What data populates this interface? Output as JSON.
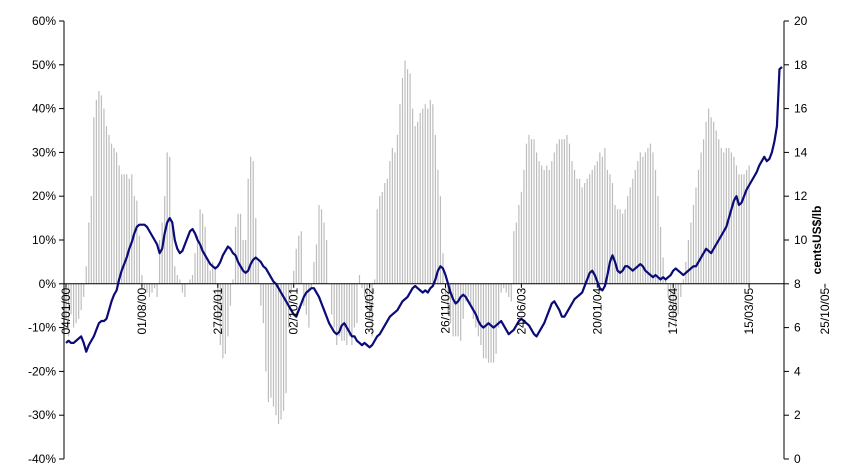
{
  "chart_data": {
    "type": "bar+line",
    "title": "",
    "y_left": {
      "ticks": [
        -40,
        -30,
        -20,
        -10,
        0,
        10,
        20,
        30,
        40,
        50,
        60
      ],
      "tick_labels": [
        "-40%",
        "-30%",
        "-20%",
        "-10%",
        "0%",
        "10%",
        "20%",
        "30%",
        "40%",
        "50%",
        "60%"
      ],
      "ylim": [
        -40,
        60
      ],
      "label": ""
    },
    "y_right": {
      "ticks": [
        0,
        2,
        4,
        6,
        8,
        10,
        12,
        14,
        16,
        18,
        20
      ],
      "tick_labels": [
        "0",
        "2",
        "4",
        "6",
        "8",
        "10",
        "12",
        "14",
        "16",
        "18",
        "20"
      ],
      "ylim": [
        0,
        20
      ],
      "label": "centsUS$/lb"
    },
    "x_tick_labels": [
      "04/01/00",
      "01/08/00",
      "27/02/01",
      "02/10/01",
      "30/04/02",
      "26/11/02",
      "24/06/03",
      "20/01/04",
      "17/08/04",
      "15/03/05",
      "25/10/05"
    ],
    "x_tick_positions": [
      0,
      30,
      60,
      90,
      120,
      150,
      180,
      210,
      240,
      270,
      300
    ],
    "colors": {
      "bars": "#bdbdbd",
      "line": "#0a0a78",
      "axis": "#000000"
    },
    "series": [
      {
        "type": "bar",
        "axis": "left",
        "values": [
          -8,
          -12,
          -7,
          -10,
          -9,
          -8,
          -6,
          -3,
          4,
          14,
          20,
          38,
          42,
          44,
          43,
          40,
          36,
          34,
          32,
          31,
          30,
          27,
          25,
          25,
          25,
          24,
          25,
          20,
          19,
          11,
          2,
          -1,
          -2,
          -3,
          -2,
          -1,
          -3,
          10,
          14,
          20,
          30,
          29,
          14,
          4,
          2,
          1,
          -2,
          -3,
          0,
          1,
          2,
          7,
          11,
          17,
          16,
          13,
          5,
          3,
          5,
          4,
          -8,
          -14,
          -17,
          -16,
          -12,
          -5,
          1,
          13,
          16,
          16,
          10,
          10,
          24,
          29,
          28,
          15,
          5,
          -5,
          -9,
          -20,
          -27,
          -26,
          -28,
          -30,
          -32,
          -31,
          -29,
          -25,
          -10,
          -2,
          3,
          8,
          11,
          12,
          -5,
          -7,
          -10,
          -1,
          5,
          9,
          18,
          17,
          14,
          10,
          0,
          -7,
          -10,
          -14,
          -12,
          -13,
          -13,
          -14,
          -12,
          -14,
          -10,
          -9,
          2,
          -1,
          -3,
          -6,
          -8,
          -12,
          1,
          17,
          20,
          21,
          23,
          24,
          28,
          31,
          30,
          34,
          41,
          47,
          51,
          49,
          48,
          40,
          36,
          37,
          39,
          40,
          41,
          40,
          42,
          41,
          34,
          26,
          20,
          7,
          -3,
          -7,
          -9,
          -12,
          -12,
          -12,
          -13,
          -8,
          -4,
          -3,
          -5,
          -8,
          -10,
          -12,
          -14,
          -17,
          -17,
          -18,
          -18,
          -18,
          -16,
          -10,
          -2,
          -1,
          -2,
          -3,
          -4,
          12,
          14,
          18,
          21,
          26,
          32,
          34,
          33,
          33,
          30,
          28,
          27,
          26,
          27,
          26,
          28,
          30,
          32,
          33,
          33,
          33,
          34,
          32,
          28,
          26,
          24,
          24,
          22,
          23,
          24,
          25,
          26,
          27,
          28,
          30,
          29,
          31,
          26,
          25,
          23,
          18,
          17,
          17,
          16,
          17,
          20,
          22,
          24,
          26,
          28,
          30,
          29,
          30,
          31,
          32,
          30,
          26,
          20,
          13,
          6,
          1,
          -3,
          -5,
          -8,
          -10,
          -7,
          -3,
          1,
          5,
          10,
          14,
          18,
          22,
          26,
          30,
          33,
          37,
          40,
          38,
          37,
          35,
          33,
          31,
          30,
          31,
          31,
          30,
          29,
          27,
          25,
          25,
          25,
          26,
          27
        ],
        "note": "Weekly % change (approximate), plotted as thin gray bars against left axis"
      },
      {
        "type": "line",
        "axis": "right",
        "values": [
          5.3,
          5.4,
          5.3,
          5.3,
          5.4,
          5.5,
          5.6,
          5.3,
          4.9,
          5.2,
          5.4,
          5.6,
          5.9,
          6.2,
          6.3,
          6.3,
          6.4,
          6.8,
          7.2,
          7.5,
          7.7,
          8.2,
          8.6,
          8.9,
          9.2,
          9.6,
          9.9,
          10.3,
          10.6,
          10.7,
          10.7,
          10.7,
          10.6,
          10.4,
          10.2,
          10.0,
          9.8,
          9.4,
          9.6,
          10.3,
          10.8,
          11.0,
          10.8,
          10.0,
          9.6,
          9.4,
          9.5,
          9.8,
          10.1,
          10.4,
          10.5,
          10.3,
          10.0,
          9.8,
          9.5,
          9.3,
          9.1,
          8.9,
          8.8,
          8.7,
          8.8,
          9.0,
          9.3,
          9.5,
          9.7,
          9.6,
          9.4,
          9.3,
          9.0,
          8.8,
          8.6,
          8.5,
          8.6,
          8.9,
          9.1,
          9.2,
          9.1,
          9.0,
          8.8,
          8.7,
          8.5,
          8.3,
          8.1,
          8.0,
          7.8,
          7.6,
          7.4,
          7.2,
          7.0,
          6.8,
          6.6,
          6.5,
          6.8,
          7.1,
          7.4,
          7.6,
          7.7,
          7.8,
          7.8,
          7.6,
          7.4,
          7.1,
          6.8,
          6.5,
          6.2,
          6.0,
          5.8,
          5.7,
          5.8,
          6.1,
          6.2,
          6.0,
          5.8,
          5.6,
          5.6,
          5.4,
          5.3,
          5.2,
          5.3,
          5.2,
          5.1,
          5.2,
          5.4,
          5.6,
          5.7,
          5.9,
          6.1,
          6.3,
          6.5,
          6.6,
          6.7,
          6.8,
          7.0,
          7.2,
          7.3,
          7.4,
          7.6,
          7.8,
          7.9,
          7.8,
          7.7,
          7.6,
          7.7,
          7.6,
          7.8,
          7.9,
          8.2,
          8.6,
          8.8,
          8.7,
          8.4,
          8.0,
          7.6,
          7.3,
          7.1,
          7.2,
          7.4,
          7.5,
          7.4,
          7.2,
          7.0,
          6.8,
          6.6,
          6.3,
          6.1,
          6.0,
          6.1,
          6.2,
          6.1,
          6.0,
          6.1,
          6.2,
          6.3,
          6.1,
          5.9,
          5.7,
          5.8,
          5.9,
          6.1,
          6.3,
          6.4,
          6.3,
          6.2,
          6.1,
          5.9,
          5.7,
          5.6,
          5.8,
          6.0,
          6.2,
          6.5,
          6.8,
          7.1,
          7.2,
          7.0,
          6.8,
          6.5,
          6.5,
          6.7,
          6.9,
          7.1,
          7.3,
          7.4,
          7.5,
          7.6,
          7.9,
          8.2,
          8.5,
          8.6,
          8.4,
          8.1,
          7.8,
          7.7,
          7.9,
          8.4,
          9.0,
          9.3,
          9.0,
          8.6,
          8.5,
          8.6,
          8.8,
          8.8,
          8.7,
          8.6,
          8.7,
          8.8,
          8.9,
          8.8,
          8.6,
          8.5,
          8.4,
          8.3,
          8.4,
          8.3,
          8.2,
          8.3,
          8.2,
          8.3,
          8.4,
          8.6,
          8.7,
          8.6,
          8.5,
          8.4,
          8.5,
          8.6,
          8.7,
          8.8,
          8.8,
          9.0,
          9.2,
          9.4,
          9.6,
          9.5,
          9.4,
          9.6,
          9.8,
          10.0,
          10.2,
          10.4,
          10.6,
          11.0,
          11.4,
          11.8,
          12.0,
          11.6,
          11.7,
          12.0,
          12.3,
          12.5,
          12.7,
          12.9,
          13.1,
          13.4,
          13.6,
          13.8,
          13.6,
          13.7,
          14.0,
          14.5,
          15.2,
          17.8,
          17.9
        ],
        "note": "Price in cents US$/lb (approximate), plotted as dark blue line against right axis"
      }
    ],
    "grid": false,
    "legend": "none"
  }
}
